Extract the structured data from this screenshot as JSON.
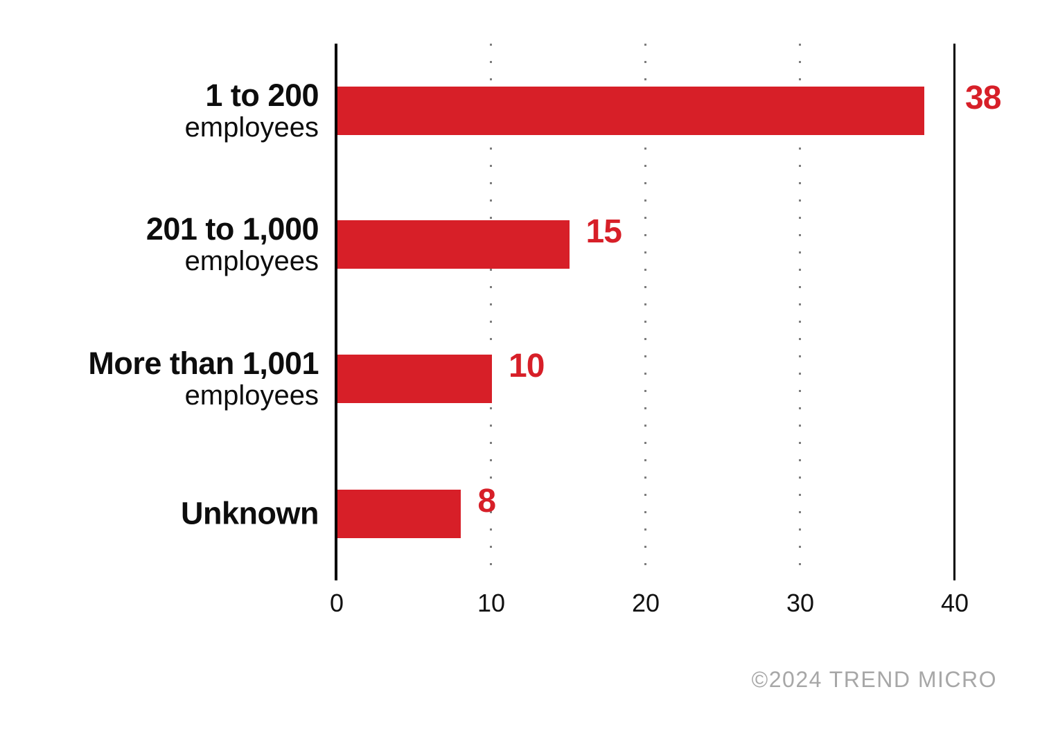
{
  "chart_data": {
    "type": "bar",
    "orientation": "horizontal",
    "title": "",
    "xlabel": "",
    "ylabel": "",
    "categories": [
      "1 to 200 employees",
      "201 to 1,000 employees",
      "More than 1,001 employees",
      "Unknown"
    ],
    "rows": [
      {
        "label": "1 to 200",
        "sublabel": "employees",
        "value": 38
      },
      {
        "label": "201 to 1,000",
        "sublabel": "employees",
        "value": 15
      },
      {
        "label": "More than 1,001",
        "sublabel": "employees",
        "value": 10
      },
      {
        "label": "Unknown",
        "sublabel": "",
        "value": 8
      }
    ],
    "x_ticks": [
      "0",
      "10",
      "20",
      "30",
      "40"
    ],
    "xlim": [
      0,
      40
    ],
    "grid_values": [
      10,
      20,
      30
    ],
    "grid_style": "dotted-vertical",
    "legend": null,
    "colors": {
      "bar": "#D71F28",
      "value_label": "#D71F28",
      "axis_line": "#000000",
      "gridline_dot": "#7D7D7D",
      "tick_label": "#111111",
      "footer": "#A7A7A7"
    }
  },
  "footer": {
    "copyright": "©2024 TREND MICRO"
  }
}
